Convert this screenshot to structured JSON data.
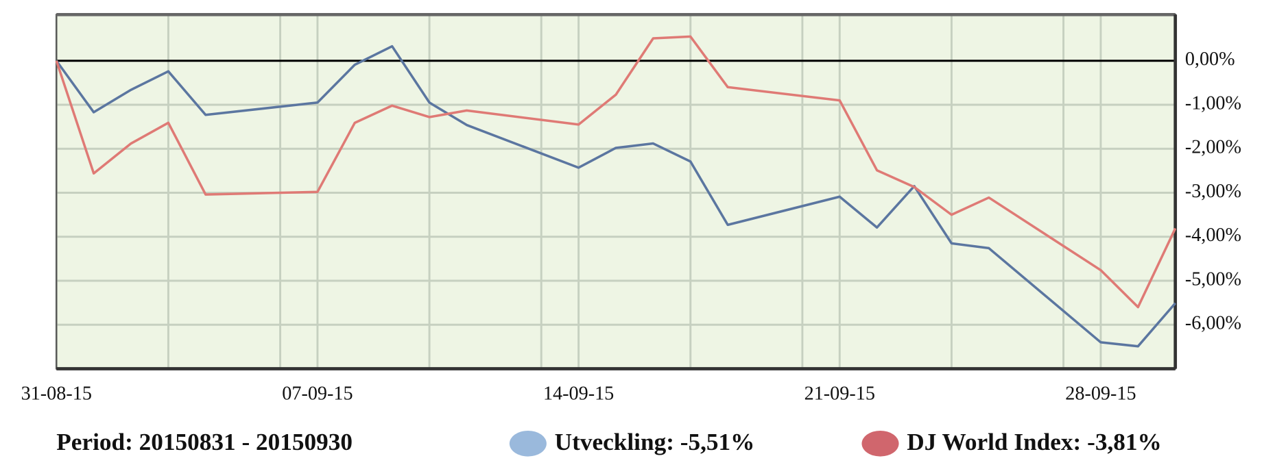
{
  "chart_data": {
    "type": "line",
    "period": "Period: 20150831 - 20150930",
    "x": [
      "31-08-15",
      "01-09-15",
      "02-09-15",
      "03-09-15",
      "04-09-15",
      "07-09-15",
      "08-09-15",
      "09-09-15",
      "10-09-15",
      "11-09-15",
      "14-09-15",
      "15-09-15",
      "16-09-15",
      "17-09-15",
      "18-09-15",
      "21-09-15",
      "22-09-15",
      "23-09-15",
      "24-09-15",
      "25-09-15",
      "28-09-15",
      "29-09-15",
      "30-09-15"
    ],
    "series": [
      {
        "name": "Utveckling: -5,51%",
        "color": "#5b76a0",
        "legend_color": "#9ab9dc",
        "values": [
          0,
          -1.17,
          -0.66,
          -0.24,
          -1.23,
          -0.95,
          -0.09,
          0.33,
          -0.95,
          -1.46,
          -2.43,
          -1.98,
          -1.88,
          -2.29,
          -3.73,
          -3.09,
          -3.79,
          -2.85,
          -4.15,
          -4.26,
          -6.4,
          -6.49,
          -5.51
        ]
      },
      {
        "name": "DJ World Index: -3,81%",
        "color": "#df7a75",
        "legend_color": "#d0666d",
        "values": [
          0,
          -2.56,
          -1.88,
          -1.41,
          -3.04,
          -2.98,
          -1.41,
          -1.02,
          -1.28,
          -1.13,
          -1.45,
          -0.77,
          0.51,
          0.55,
          -0.6,
          -0.9,
          -2.49,
          -2.87,
          -3.5,
          -3.11,
          -4.76,
          -5.6,
          -3.81
        ]
      }
    ],
    "xlim": [
      "31-08-15",
      "30-09-15"
    ],
    "xticks": [
      "31-08-15",
      "07-09-15",
      "14-09-15",
      "21-09-15",
      "28-09-15"
    ],
    "xgrid": [
      "03-09-15",
      "06-09-15",
      "10-09-15",
      "13-09-15",
      "17-09-15",
      "20-09-15",
      "24-09-15",
      "27-09-15"
    ],
    "ylim": [
      -7,
      1.05
    ],
    "yticks": [
      {
        "value": 0,
        "label": "0,00%"
      },
      {
        "value": -1,
        "label": "-1,00%"
      },
      {
        "value": -2,
        "label": "-2,00%"
      },
      {
        "value": -3,
        "label": "-3,00%"
      },
      {
        "value": -4,
        "label": "-4,00%"
      },
      {
        "value": -5,
        "label": "-5,00%"
      },
      {
        "value": -6,
        "label": "-6,00%"
      }
    ],
    "grid": true
  }
}
